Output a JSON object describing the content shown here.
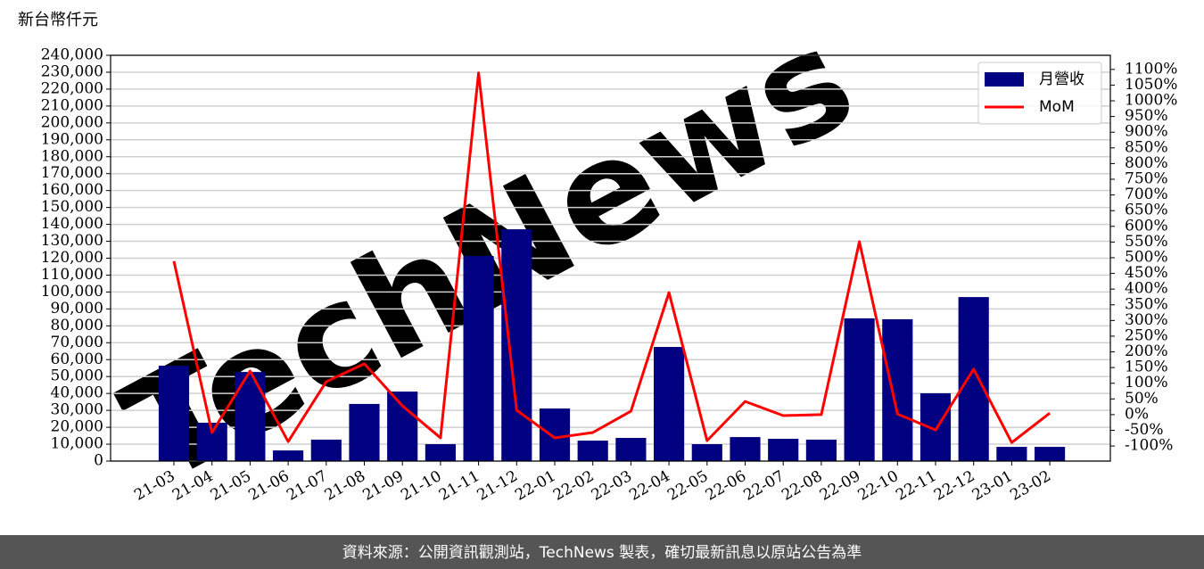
{
  "chart_data": {
    "type": "bar",
    "y_label": "新台幣仟元",
    "watermark": "TechNews",
    "source": "資料來源：公開資訊觀測站，TechNews 製表，確切最新訊息以原站公告為準",
    "categories": [
      "21-03",
      "21-04",
      "21-05",
      "21-06",
      "21-07",
      "21-08",
      "21-09",
      "21-10",
      "21-11",
      "21-12",
      "22-01",
      "22-02",
      "22-03",
      "22-04",
      "22-05",
      "22-06",
      "22-07",
      "22-08",
      "22-09",
      "22-10",
      "22-11",
      "22-12",
      "23-01",
      "23-02"
    ],
    "series": [
      {
        "name": "月營收",
        "type": "bar",
        "color": "#000080",
        "values": [
          56400,
          22700,
          52700,
          6300,
          12700,
          33800,
          41100,
          10000,
          121300,
          137100,
          31100,
          12100,
          13700,
          67500,
          10000,
          14200,
          13200,
          12700,
          84400,
          83900,
          40100,
          97000,
          8400,
          8400
        ]
      },
      {
        "name": "MoM",
        "type": "line",
        "axis": "y2",
        "color": "#ff0000",
        "values": [
          489,
          -57,
          139,
          -86,
          105,
          162,
          28,
          -74,
          1089,
          14,
          -74,
          -57,
          11,
          389,
          -83,
          42,
          -3,
          0,
          551,
          2,
          -49,
          145,
          -89,
          5
        ]
      }
    ],
    "ylim": [
      0,
      240000
    ],
    "yticks": [
      0,
      {
        "value": 10000,
        "label": "10,000"
      },
      {
        "value": 20000,
        "label": "20,000"
      },
      {
        "value": 30000,
        "label": "30,000"
      },
      {
        "value": 40000,
        "label": "40,000"
      },
      {
        "value": 50000,
        "label": "50,000"
      },
      {
        "value": 60000,
        "label": "60,000"
      },
      {
        "value": 70000,
        "label": "70,000"
      },
      {
        "value": 80000,
        "label": "80,000"
      },
      {
        "value": 90000,
        "label": "90,000"
      },
      {
        "value": 100000,
        "label": "100,000"
      },
      {
        "value": 110000,
        "label": "110,000"
      },
      {
        "value": 120000,
        "label": "120,000"
      },
      {
        "value": 130000,
        "label": "130,000"
      },
      {
        "value": 140000,
        "label": "140,000"
      },
      {
        "value": 150000,
        "label": "150,000"
      },
      {
        "value": 160000,
        "label": "160,000"
      },
      {
        "value": 170000,
        "label": "170,000"
      },
      {
        "value": 180000,
        "label": "180,000"
      },
      {
        "value": 190000,
        "label": "190,000"
      },
      {
        "value": 200000,
        "label": "200,000"
      },
      {
        "value": 210000,
        "label": "210,000"
      },
      {
        "value": 220000,
        "label": "220,000"
      },
      {
        "value": 230000,
        "label": "230,000"
      },
      {
        "value": 240000,
        "label": "240,000"
      }
    ],
    "y2lim": [
      -148,
      1145
    ],
    "y2ticks": [
      {
        "value": -100,
        "label": "-100%"
      },
      {
        "value": -50,
        "label": "-50%"
      },
      {
        "value": 0,
        "label": "0%"
      },
      {
        "value": 50,
        "label": "50%"
      },
      {
        "value": 100,
        "label": "100%"
      },
      {
        "value": 150,
        "label": "150%"
      },
      {
        "value": 200,
        "label": "200%"
      },
      {
        "value": 250,
        "label": "250%"
      },
      {
        "value": 300,
        "label": "300%"
      },
      {
        "value": 350,
        "label": "350%"
      },
      {
        "value": 400,
        "label": "400%"
      },
      {
        "value": 450,
        "label": "450%"
      },
      {
        "value": 500,
        "label": "500%"
      },
      {
        "value": 550,
        "label": "550%"
      },
      {
        "value": 600,
        "label": "600%"
      },
      {
        "value": 650,
        "label": "650%"
      },
      {
        "value": 700,
        "label": "700%"
      },
      {
        "value": 750,
        "label": "750%"
      },
      {
        "value": 800,
        "label": "800%"
      },
      {
        "value": 850,
        "label": "850%"
      },
      {
        "value": 900,
        "label": "900%"
      },
      {
        "value": 950,
        "label": "950%"
      },
      {
        "value": 1000,
        "label": "1000%"
      },
      {
        "value": 1050,
        "label": "1050%"
      },
      {
        "value": 1100,
        "label": "1100%"
      }
    ],
    "grid": true,
    "legend": "upper right"
  }
}
